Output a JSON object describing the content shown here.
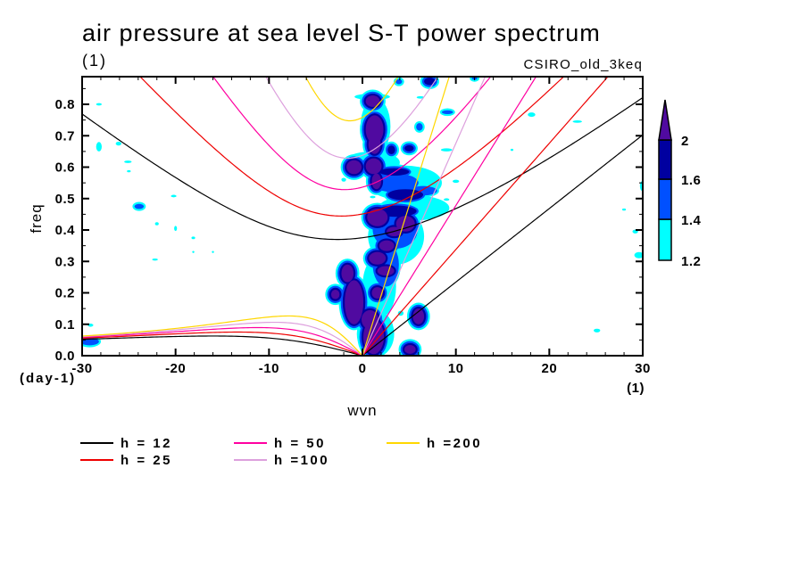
{
  "chart_data": {
    "type": "heatmap",
    "overlay_type": "line",
    "title": "air pressure at sea level S-T power spectrum",
    "subtitle": "(1)",
    "dataset_label": "CSIRO_old_3keq",
    "xlabel": "wvn",
    "xunits": "(1)",
    "ylabel": "freq",
    "yunits": "(day-1)",
    "xlim": [
      -30,
      30
    ],
    "ylim": [
      0,
      0.888
    ],
    "grid": false,
    "xticks": [
      -30,
      -20,
      -10,
      0,
      10,
      20,
      30
    ],
    "xtick_labels": [
      "-30",
      "-20",
      "-10",
      "0",
      "10",
      "20",
      "30"
    ],
    "xminor_step": 2,
    "yticks": [
      0,
      0.1,
      0.2,
      0.3,
      0.4,
      0.5,
      0.6,
      0.7,
      0.8
    ],
    "ytick_labels": [
      "0.0",
      "0.1",
      "0.2",
      "0.3",
      "0.4",
      "0.5",
      "0.6",
      "0.7",
      "0.8"
    ],
    "yminor_step": 0.05,
    "colorbar": {
      "position": "right",
      "levels": [
        1.2,
        1.4,
        1.6,
        2
      ],
      "labels": [
        "1.2",
        "1.4",
        "1.6",
        "2"
      ],
      "colors": [
        "#00ffff",
        "#0050ff",
        "#0000a0",
        "#500aa0"
      ],
      "extend": "max"
    },
    "contour_features": [
      {
        "wvn": 1.05,
        "freq": 0.824,
        "dwvn": 1.9,
        "dfreq": 0.01,
        "level": 1.2
      },
      {
        "wvn": 1.4,
        "freq": 0.73,
        "dwvn": 1.6,
        "dfreq": 0.09,
        "level": 1.2
      },
      {
        "wvn": 1.0,
        "freq": 0.615,
        "dwvn": 3.0,
        "dfreq": 0.035,
        "level": 1.2
      },
      {
        "wvn": 4.5,
        "freq": 0.55,
        "dwvn": 4.0,
        "dfreq": 0.055,
        "level": 1.2
      },
      {
        "wvn": 5.5,
        "freq": 0.47,
        "dwvn": 3.8,
        "dfreq": 0.04,
        "level": 1.2
      },
      {
        "wvn": 3.6,
        "freq": 0.38,
        "dwvn": 3.0,
        "dfreq": 0.09,
        "level": 1.2
      },
      {
        "wvn": 1.8,
        "freq": 0.22,
        "dwvn": 1.8,
        "dfreq": 0.1,
        "level": 1.2
      },
      {
        "wvn": 1.4,
        "freq": 0.07,
        "dwvn": 2.0,
        "dfreq": 0.075,
        "level": 1.2
      },
      {
        "wvn": 3.5,
        "freq": 0.55,
        "dwvn": 2.5,
        "dfreq": 0.03,
        "level": 1.4
      },
      {
        "wvn": 3.5,
        "freq": 0.4,
        "dwvn": 2.4,
        "dfreq": 0.06,
        "level": 1.4
      },
      {
        "wvn": 2.5,
        "freq": 0.29,
        "dwvn": 1.4,
        "dfreq": 0.07,
        "level": 1.4
      },
      {
        "wvn": 6.5,
        "freq": 0.525,
        "dwvn": 1.5,
        "dfreq": 0.015,
        "level": 1.4
      },
      {
        "wvn": 3.4,
        "freq": 0.585,
        "dwvn": 1.6,
        "dfreq": 0.012,
        "level": 1.6
      },
      {
        "wvn": 4.6,
        "freq": 0.512,
        "dwvn": 1.9,
        "dfreq": 0.018,
        "level": 1.6
      },
      {
        "wvn": 3.6,
        "freq": 0.46,
        "dwvn": 2.2,
        "dfreq": 0.018,
        "level": 1.6
      },
      {
        "wvn": 5.0,
        "freq": 0.66,
        "dwvn": 0.5,
        "dfreq": 0.01,
        "level": 1.6
      },
      {
        "wvn": 3.1,
        "freq": 0.655,
        "dwvn": 0.4,
        "dfreq": 0.014,
        "level": 1.6
      },
      {
        "wvn": 1.1,
        "freq": 0.81,
        "dwvn": 0.75,
        "dfreq": 0.018,
        "level": 2
      },
      {
        "wvn": 1.3,
        "freq": 0.72,
        "dwvn": 0.95,
        "dfreq": 0.045,
        "level": 2
      },
      {
        "wvn": 1.3,
        "freq": 0.672,
        "dwvn": 0.65,
        "dfreq": 0.03,
        "level": 2
      },
      {
        "wvn": 1.2,
        "freq": 0.603,
        "dwvn": 0.85,
        "dfreq": 0.025,
        "level": 2
      },
      {
        "wvn": -0.9,
        "freq": 0.6,
        "dwvn": 0.8,
        "dfreq": 0.022,
        "level": 2
      },
      {
        "wvn": 1.5,
        "freq": 0.555,
        "dwvn": 0.5,
        "dfreq": 0.025,
        "level": 2
      },
      {
        "wvn": 1.6,
        "freq": 0.44,
        "dwvn": 1.1,
        "dfreq": 0.028,
        "level": 2
      },
      {
        "wvn": 4.6,
        "freq": 0.42,
        "dwvn": 1.0,
        "dfreq": 0.025,
        "level": 2
      },
      {
        "wvn": 3.4,
        "freq": 0.395,
        "dwvn": 0.8,
        "dfreq": 0.015,
        "level": 2
      },
      {
        "wvn": 2.6,
        "freq": 0.35,
        "dwvn": 0.8,
        "dfreq": 0.017,
        "level": 2
      },
      {
        "wvn": 1.6,
        "freq": 0.31,
        "dwvn": 0.9,
        "dfreq": 0.02,
        "level": 2
      },
      {
        "wvn": 2.5,
        "freq": 0.27,
        "dwvn": 0.9,
        "dfreq": 0.015,
        "level": 2
      },
      {
        "wvn": 1.6,
        "freq": 0.2,
        "dwvn": 0.6,
        "dfreq": 0.018,
        "level": 2
      },
      {
        "wvn": -1.6,
        "freq": 0.262,
        "dwvn": 0.65,
        "dfreq": 0.028,
        "level": 2
      },
      {
        "wvn": -0.9,
        "freq": 0.17,
        "dwvn": 1.0,
        "dfreq": 0.07,
        "level": 2
      },
      {
        "wvn": -2.9,
        "freq": 0.195,
        "dwvn": 0.45,
        "dfreq": 0.015,
        "level": 2
      },
      {
        "wvn": 1.2,
        "freq": 0.06,
        "dwvn": 1.1,
        "dfreq": 0.055,
        "level": 2
      },
      {
        "wvn": 0.8,
        "freq": 0.115,
        "dwvn": 0.9,
        "dfreq": 0.03,
        "level": 2
      },
      {
        "wvn": 6.0,
        "freq": 0.125,
        "dwvn": 0.6,
        "dfreq": 0.025,
        "level": 2
      },
      {
        "wvn": 5.1,
        "freq": 0.02,
        "dwvn": 0.6,
        "dfreq": 0.014,
        "level": 2
      },
      {
        "wvn": 7.2,
        "freq": 0.873,
        "dwvn": 0.6,
        "dfreq": 0.012,
        "level": 1.6
      },
      {
        "wvn": 3.9,
        "freq": 0.872,
        "dwvn": 0.35,
        "dfreq": 0.008,
        "level": 1.4
      },
      {
        "wvn": 12.0,
        "freq": 0.882,
        "dwvn": 0.3,
        "dfreq": 0.004,
        "level": 1.4
      },
      {
        "wvn": 6.2,
        "freq": 0.822,
        "dwvn": 0.4,
        "dfreq": 0.004,
        "level": 1.2
      },
      {
        "wvn": 9.1,
        "freq": 0.775,
        "dwvn": 0.6,
        "dfreq": 0.006,
        "level": 1.4
      },
      {
        "wvn": 6.1,
        "freq": 0.728,
        "dwvn": 0.35,
        "dfreq": 0.012,
        "level": 1.4
      },
      {
        "wvn": 9.0,
        "freq": 0.655,
        "dwvn": 0.6,
        "dfreq": 0.005,
        "level": 1.2
      },
      {
        "wvn": 10.0,
        "freq": 0.555,
        "dwvn": 0.35,
        "dfreq": 0.005,
        "level": 1.2
      },
      {
        "wvn": 9.0,
        "freq": 0.497,
        "dwvn": 0.3,
        "dfreq": 0.004,
        "level": 1.2
      },
      {
        "wvn": -2.0,
        "freq": 0.56,
        "dwvn": 0.25,
        "dfreq": 0.006,
        "level": 1.2
      },
      {
        "wvn": 1.1,
        "freq": 0.505,
        "dwvn": 0.3,
        "dfreq": 0.004,
        "level": 1.2
      },
      {
        "wvn": 4.1,
        "freq": 0.135,
        "dwvn": 0.3,
        "dfreq": 0.008,
        "level": 1.2
      },
      {
        "wvn": -28.2,
        "freq": 0.8,
        "dwvn": 0.3,
        "dfreq": 0.004,
        "level": 1.2
      },
      {
        "wvn": -28.2,
        "freq": 0.665,
        "dwvn": 0.3,
        "dfreq": 0.015,
        "level": 1.2
      },
      {
        "wvn": -26.1,
        "freq": 0.675,
        "dwvn": 0.3,
        "dfreq": 0.006,
        "level": 1.2
      },
      {
        "wvn": -25.1,
        "freq": 0.617,
        "dwvn": 0.4,
        "dfreq": 0.004,
        "level": 1.2
      },
      {
        "wvn": -25.0,
        "freq": 0.587,
        "dwvn": 0.2,
        "dfreq": 0.003,
        "level": 1.2
      },
      {
        "wvn": -20.2,
        "freq": 0.508,
        "dwvn": 0.3,
        "dfreq": 0.004,
        "level": 1.2
      },
      {
        "wvn": -23.9,
        "freq": 0.475,
        "dwvn": 0.5,
        "dfreq": 0.008,
        "level": 1.4
      },
      {
        "wvn": -22.0,
        "freq": 0.42,
        "dwvn": 0.2,
        "dfreq": 0.005,
        "level": 1.2
      },
      {
        "wvn": -20.0,
        "freq": 0.405,
        "dwvn": 0.15,
        "dfreq": 0.008,
        "level": 1.2
      },
      {
        "wvn": -18.1,
        "freq": 0.375,
        "dwvn": 0.2,
        "dfreq": 0.004,
        "level": 1.2
      },
      {
        "wvn": -18.1,
        "freq": 0.33,
        "dwvn": 0.1,
        "dfreq": 0.003,
        "level": 1.2
      },
      {
        "wvn": -16.0,
        "freq": 0.33,
        "dwvn": 0.1,
        "dfreq": 0.003,
        "level": 1.2
      },
      {
        "wvn": -22.2,
        "freq": 0.306,
        "dwvn": 0.3,
        "dfreq": 0.003,
        "level": 1.2
      },
      {
        "wvn": -29.1,
        "freq": 0.097,
        "dwvn": 0.3,
        "dfreq": 0.005,
        "level": 1.2
      },
      {
        "wvn": -29.2,
        "freq": 0.045,
        "dwvn": 1.0,
        "dfreq": 0.012,
        "level": 1.4
      },
      {
        "wvn": 18.1,
        "freq": 0.767,
        "dwvn": 0.4,
        "dfreq": 0.007,
        "level": 1.2
      },
      {
        "wvn": 23.0,
        "freq": 0.745,
        "dwvn": 0.5,
        "dfreq": 0.004,
        "level": 1.2
      },
      {
        "wvn": 16.0,
        "freq": 0.655,
        "dwvn": 0.15,
        "dfreq": 0.003,
        "level": 1.2
      },
      {
        "wvn": 29.9,
        "freq": 0.54,
        "dwvn": 0.2,
        "dfreq": 0.015,
        "level": 1.2
      },
      {
        "wvn": 28.0,
        "freq": 0.465,
        "dwvn": 0.2,
        "dfreq": 0.003,
        "level": 1.2
      },
      {
        "wvn": 29.2,
        "freq": 0.395,
        "dwvn": 0.3,
        "dfreq": 0.006,
        "level": 1.2
      },
      {
        "wvn": 29.6,
        "freq": 0.32,
        "dwvn": 0.5,
        "dfreq": 0.01,
        "level": 1.2
      },
      {
        "wvn": 30.0,
        "freq": 0.155,
        "dwvn": 0.1,
        "dfreq": 0.005,
        "level": 1.2
      },
      {
        "wvn": 25.1,
        "freq": 0.08,
        "dwvn": 0.35,
        "dfreq": 0.006,
        "level": 1.2
      }
    ],
    "curve_families": [
      "kelvin",
      "rossby_n1",
      "gravity_n1"
    ],
    "legend": {
      "position": "bottom",
      "columns": 3
    },
    "series": [
      {
        "name": "h = 12",
        "equivalent_depth": 12,
        "color": "#000000"
      },
      {
        "name": "h = 25",
        "equivalent_depth": 25,
        "color": "#ee0000"
      },
      {
        "name": "h = 50",
        "equivalent_depth": 50,
        "color": "#ff00a0"
      },
      {
        "name": "h =100",
        "equivalent_depth": 100,
        "color": "#dda0dd"
      },
      {
        "name": "h =200",
        "equivalent_depth": 200,
        "color": "#ffd700"
      }
    ]
  }
}
